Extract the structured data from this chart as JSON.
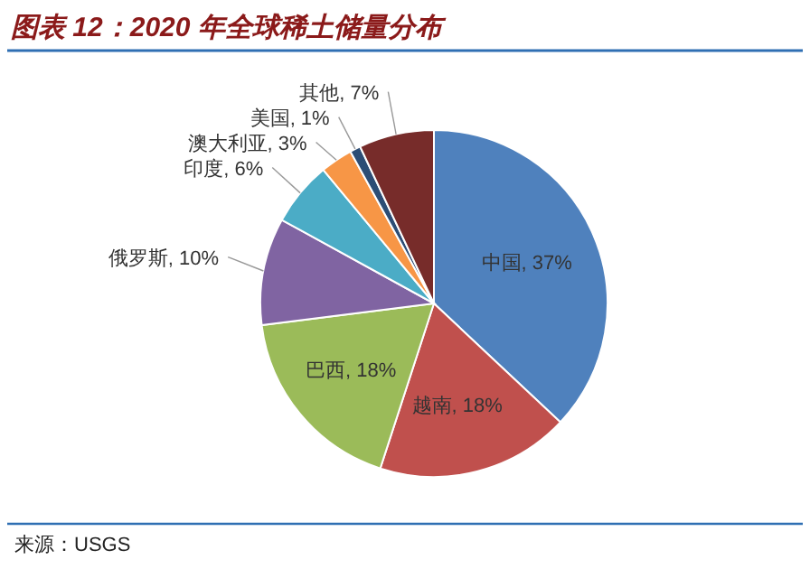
{
  "chart_data": {
    "type": "pie",
    "title": "图表 12：2020 年全球稀土储量分布",
    "categories": [
      "中国",
      "越南",
      "巴西",
      "俄罗斯",
      "印度",
      "澳大利亚",
      "美国",
      "其他"
    ],
    "values": [
      37,
      18,
      18,
      10,
      6,
      3,
      1,
      7
    ],
    "colors": [
      "#4f81bd",
      "#c0504d",
      "#9bbb59",
      "#8064a2",
      "#4bacc6",
      "#f79646",
      "#2c4d75",
      "#772c2a"
    ],
    "value_labels": [
      ", 37%",
      ", 18%",
      ", 18%",
      ", 10%",
      ", 6%",
      ", 3%",
      ", 1%",
      ", 7%"
    ],
    "legend": false,
    "annotations": [
      "来源：USGS"
    ]
  }
}
